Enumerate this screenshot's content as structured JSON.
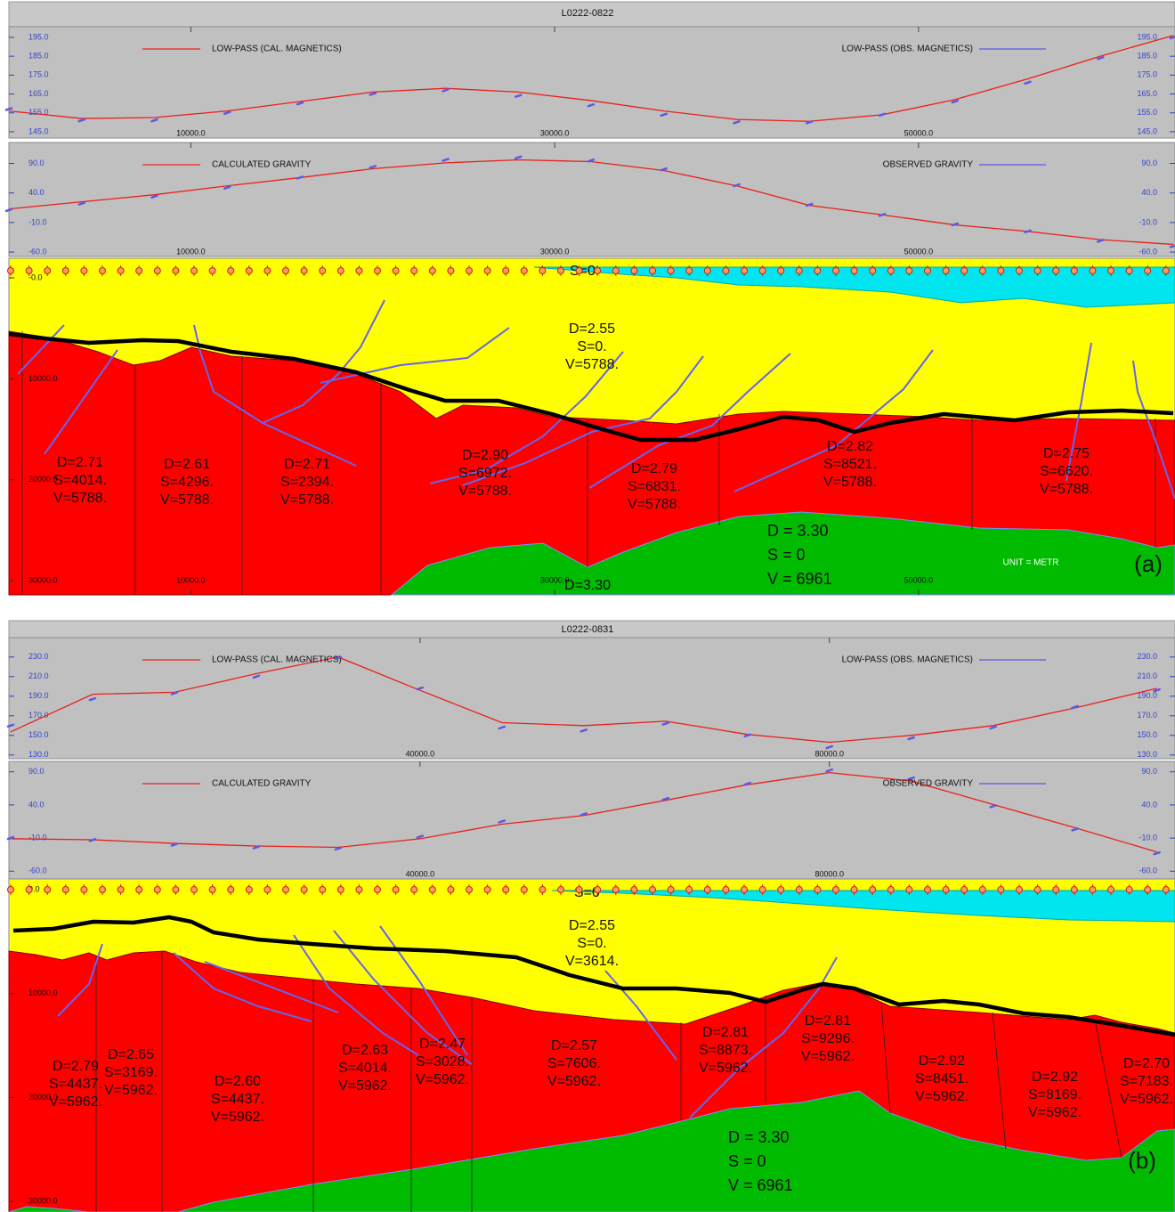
{
  "chart_data": [
    {
      "type": "line",
      "x": [
        0,
        4000,
        8000,
        12000,
        16000,
        20000,
        24000,
        28000,
        32000,
        36000,
        40000,
        44000,
        48000,
        52000,
        56000,
        60000,
        64000
      ],
      "xlim": [
        0,
        64000
      ],
      "xticks": [
        {
          "value": 10000,
          "label": "10000.0"
        },
        {
          "value": 30000,
          "label": "30000.0"
        },
        {
          "value": 50000,
          "label": "50000.0"
        }
      ],
      "ylim": [
        142.6,
        199.7
      ],
      "yticks": [
        {
          "value": 145,
          "label": "145.0"
        },
        {
          "value": 155,
          "label": "155.0"
        },
        {
          "value": 165,
          "label": "165.0"
        },
        {
          "value": 175,
          "label": "175.0"
        },
        {
          "value": 185,
          "label": "185.0"
        },
        {
          "value": 195,
          "label": "195.0"
        }
      ],
      "series": [
        {
          "name": "LOW-PASS (CAL. MAGNETICS)",
          "color": "#e8201c",
          "style": "line",
          "values": [
            156,
            152,
            152.5,
            156,
            161,
            166,
            168,
            166,
            161.5,
            156,
            151.5,
            150.5,
            154,
            162,
            173,
            185,
            196
          ]
        },
        {
          "name": "LOW-PASS (OBS. MAGNETICS)",
          "color": "#5a5ae6",
          "style": "dash",
          "values": [
            157,
            151,
            151,
            155,
            160,
            165,
            167,
            164,
            159,
            154,
            150,
            150,
            154,
            161,
            171,
            184,
            195
          ]
        }
      ]
    },
    {
      "type": "line",
      "x": [
        0,
        4000,
        8000,
        12000,
        16000,
        20000,
        24000,
        28000,
        32000,
        36000,
        40000,
        44000,
        48000,
        52000,
        56000,
        60000,
        64000
      ],
      "xlim": [
        0,
        64000
      ],
      "xticks": [
        {
          "value": 10000,
          "label": "10000.0"
        },
        {
          "value": 30000,
          "label": "30000.0"
        },
        {
          "value": 50000,
          "label": "50000.0"
        }
      ],
      "ylim": [
        -64.4,
        122.4
      ],
      "yticks": [
        {
          "value": -60,
          "label": "-60.0"
        },
        {
          "value": -10,
          "label": "-10.0"
        },
        {
          "value": 40,
          "label": "40.0"
        },
        {
          "value": 90,
          "label": "90.0"
        }
      ],
      "series": [
        {
          "name": "CALCULATED GRAVITY",
          "color": "#e8201c",
          "style": "line",
          "values": [
            13,
            25,
            37,
            52,
            66,
            81,
            91,
            96,
            93,
            78,
            52,
            19,
            3,
            -14,
            -25,
            -39,
            -47
          ]
        },
        {
          "name": "OBSERVED GRAVITY",
          "color": "#5a5ae6",
          "style": "dash",
          "values": [
            11,
            22,
            34,
            49,
            66,
            84,
            96,
            100,
            95,
            80,
            53,
            20,
            3,
            -13,
            -25,
            -41,
            -50
          ]
        }
      ]
    },
    {
      "type": "line",
      "x": [
        0,
        8000,
        16000,
        24000,
        32000,
        40000,
        48000,
        56000,
        64000,
        72000,
        80000,
        88000,
        96000,
        104000,
        112000
      ],
      "xlim": [
        0,
        113600
      ],
      "xticks": [
        {
          "value": 40000,
          "label": "40000.0"
        },
        {
          "value": 80000,
          "label": "80000.0"
        }
      ],
      "ylim": [
        128,
        248
      ],
      "yticks": [
        {
          "value": 130,
          "label": "130.0"
        },
        {
          "value": 150,
          "label": "150.0"
        },
        {
          "value": 170,
          "label": "170.0"
        },
        {
          "value": 190,
          "label": "190.0"
        },
        {
          "value": 210,
          "label": "210.0"
        },
        {
          "value": 230,
          "label": "230.0"
        }
      ],
      "series": [
        {
          "name": "LOW-PASS (CAL. MAGNETICS)",
          "color": "#e8201c",
          "style": "line",
          "values": [
            153.6,
            192,
            194,
            213,
            230,
            196,
            163,
            160,
            164.5,
            151,
            143,
            150,
            160,
            178,
            198
          ]
        },
        {
          "name": "LOW-PASS (OBS. MAGNETICS)",
          "color": "#5a5ae6",
          "style": "dash",
          "values": [
            160,
            187,
            193,
            210,
            229,
            198,
            158,
            155,
            162,
            150,
            138,
            147,
            158,
            179,
            196
          ]
        }
      ]
    },
    {
      "type": "line",
      "x": [
        0,
        8000,
        16000,
        24000,
        32000,
        40000,
        48000,
        56000,
        64000,
        72000,
        80000,
        88000,
        96000,
        104000,
        112000
      ],
      "xlim": [
        0,
        113600
      ],
      "xticks": [
        {
          "value": 40000,
          "label": "40000.0"
        },
        {
          "value": 80000,
          "label": "80000.0"
        }
      ],
      "ylim": [
        -69,
        103
      ],
      "yticks": [
        {
          "value": -60,
          "label": "-60.0"
        },
        {
          "value": -10,
          "label": "-10.0"
        },
        {
          "value": 40,
          "label": "40.0"
        },
        {
          "value": 90,
          "label": "90.0"
        }
      ],
      "series": [
        {
          "name": "CALCULATED GRAVITY",
          "color": "#e8201c",
          "style": "line",
          "values": [
            -11,
            -12.6,
            -18,
            -22,
            -24,
            -11,
            11,
            24,
            47,
            70.5,
            88.7,
            76,
            40.6,
            5.6,
            -31
          ]
        },
        {
          "name": "OBSERVED GRAVITY",
          "color": "#5a5ae6",
          "style": "dash",
          "values": [
            -10,
            -13,
            -20,
            -24,
            -26,
            -8,
            15,
            26,
            49,
            72,
            92,
            80,
            38,
            3,
            -33
          ]
        }
      ]
    }
  ],
  "panels": [
    {
      "title": "L0222-0822",
      "label": "(a)",
      "section": {
        "xlim": [
          0,
          64000
        ],
        "xticks": [
          {
            "value": 10000,
            "label": "10000.0"
          },
          {
            "value": 30000,
            "label": "30000.0"
          },
          {
            "value": 50000,
            "label": "50000.0"
          }
        ],
        "depth_lim": [
          0,
          31400
        ],
        "depth_ticks": [
          {
            "value": 0,
            "label": "-0.0"
          },
          {
            "value": 10000,
            "label": "10000.0"
          },
          {
            "value": 20000,
            "label": "20000.0"
          },
          {
            "value": 30000,
            "label": "30000.0"
          }
        ],
        "top_label": "S=0",
        "bodies": [
          {
            "lines": [
              "D=2.55",
              "S=0.",
              "V=5788."
            ]
          },
          {
            "lines": [
              "D=2.71",
              "S=4014.",
              "V=5788."
            ]
          },
          {
            "lines": [
              "D=2.61",
              "S=4296.",
              "V=5788."
            ]
          },
          {
            "lines": [
              "D=2.71",
              "S=2394.",
              "V=5788."
            ]
          },
          {
            "lines": [
              "D=2.90",
              "S=6972.",
              "V=5788."
            ]
          },
          {
            "lines": [
              "D=2.79",
              "S=6831.",
              "V=5788."
            ]
          },
          {
            "lines": [
              "D=2.82",
              "S=8521.",
              "V=5788."
            ]
          },
          {
            "lines": [
              "D=2.75",
              "S=6620.",
              "V=5788."
            ]
          }
        ],
        "mantle": [
          "D = 3.30",
          "S = 0",
          "V = 6961"
        ],
        "bottom_label": "D=3.30",
        "unit": "UNIT = METR"
      }
    },
    {
      "title": "L0222-0831",
      "label": "(b)",
      "section": {
        "depth_lim": [
          0,
          31000
        ],
        "depth_ticks": [
          {
            "value": 0,
            "label": "0.0"
          },
          {
            "value": 10000,
            "label": "10000.0"
          },
          {
            "value": 20000,
            "label": "20000.0"
          },
          {
            "value": 30000,
            "label": "30000.0"
          }
        ],
        "top_label": "S=0",
        "bodies": [
          {
            "lines": [
              "D=2.55",
              "S=0.",
              "V=3614."
            ]
          },
          {
            "lines": [
              "D=2.79",
              "S=4437.",
              "V=5962."
            ]
          },
          {
            "lines": [
              "D=2.65",
              "S=3169.",
              "V=5962."
            ]
          },
          {
            "lines": [
              "D=2.60",
              "S=4437.",
              "V=5962."
            ]
          },
          {
            "lines": [
              "D=2.63",
              "S=4014.",
              "V=5962."
            ]
          },
          {
            "lines": [
              "D=2.47",
              "S=3028.",
              "V=5962."
            ]
          },
          {
            "lines": [
              "D=2.57",
              "S=7606.",
              "V=5962."
            ]
          },
          {
            "lines": [
              "D=2.81",
              "S=8873.",
              "V=5962."
            ]
          },
          {
            "lines": [
              "D=2.81",
              "S=9296.",
              "V=5962."
            ]
          },
          {
            "lines": [
              "D=2.92",
              "S=8451.",
              "V=5962."
            ]
          },
          {
            "lines": [
              "D=2.92",
              "S=8169.",
              "V=5962."
            ]
          },
          {
            "lines": [
              "D=2.70",
              "S=7183.",
              "V=5962."
            ]
          }
        ],
        "mantle": [
          "D = 3.30",
          "S = 0",
          "V = 6961"
        ]
      }
    }
  ]
}
